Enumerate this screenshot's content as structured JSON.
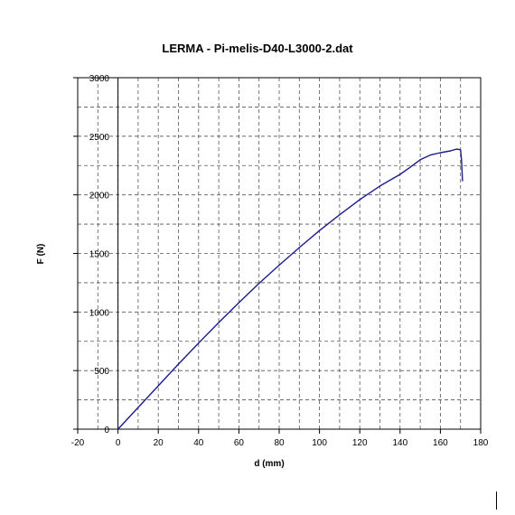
{
  "chart_data": {
    "type": "line",
    "title": "LERMA  - Pi-melis-D40-L3000-2.dat",
    "xlabel": "d (mm)",
    "ylabel": "F (N)",
    "xlim": [
      -20,
      180
    ],
    "ylim": [
      0,
      3000
    ],
    "x_major_ticks": [
      -20,
      0,
      20,
      40,
      60,
      80,
      100,
      120,
      140,
      160,
      180
    ],
    "y_major_ticks": [
      0,
      500,
      1000,
      1500,
      2000,
      2500,
      3000
    ],
    "x_tick_labels": [
      "-20",
      "0",
      "20",
      "40",
      "60",
      "80",
      "100",
      "120",
      "140",
      "160",
      "180"
    ],
    "y_tick_labels": [
      "0",
      "500",
      "1000",
      "1500",
      "2000",
      "2500",
      "3000"
    ],
    "grid": true,
    "grid_style": "dashed",
    "grid_x_step": 10,
    "grid_y_step": 250,
    "legend": "none",
    "series": [
      {
        "color": "#1c1c8c",
        "x": [
          0,
          10,
          20,
          30,
          40,
          50,
          60,
          70,
          80,
          90,
          100,
          110,
          120,
          130,
          140,
          145,
          150,
          155,
          160,
          165,
          168,
          170,
          170.5,
          171
        ],
        "y": [
          0,
          185,
          370,
          555,
          735,
          910,
          1080,
          1245,
          1400,
          1550,
          1695,
          1830,
          1960,
          2075,
          2175,
          2235,
          2300,
          2340,
          2360,
          2375,
          2390,
          2385,
          2300,
          2120
        ]
      }
    ]
  }
}
